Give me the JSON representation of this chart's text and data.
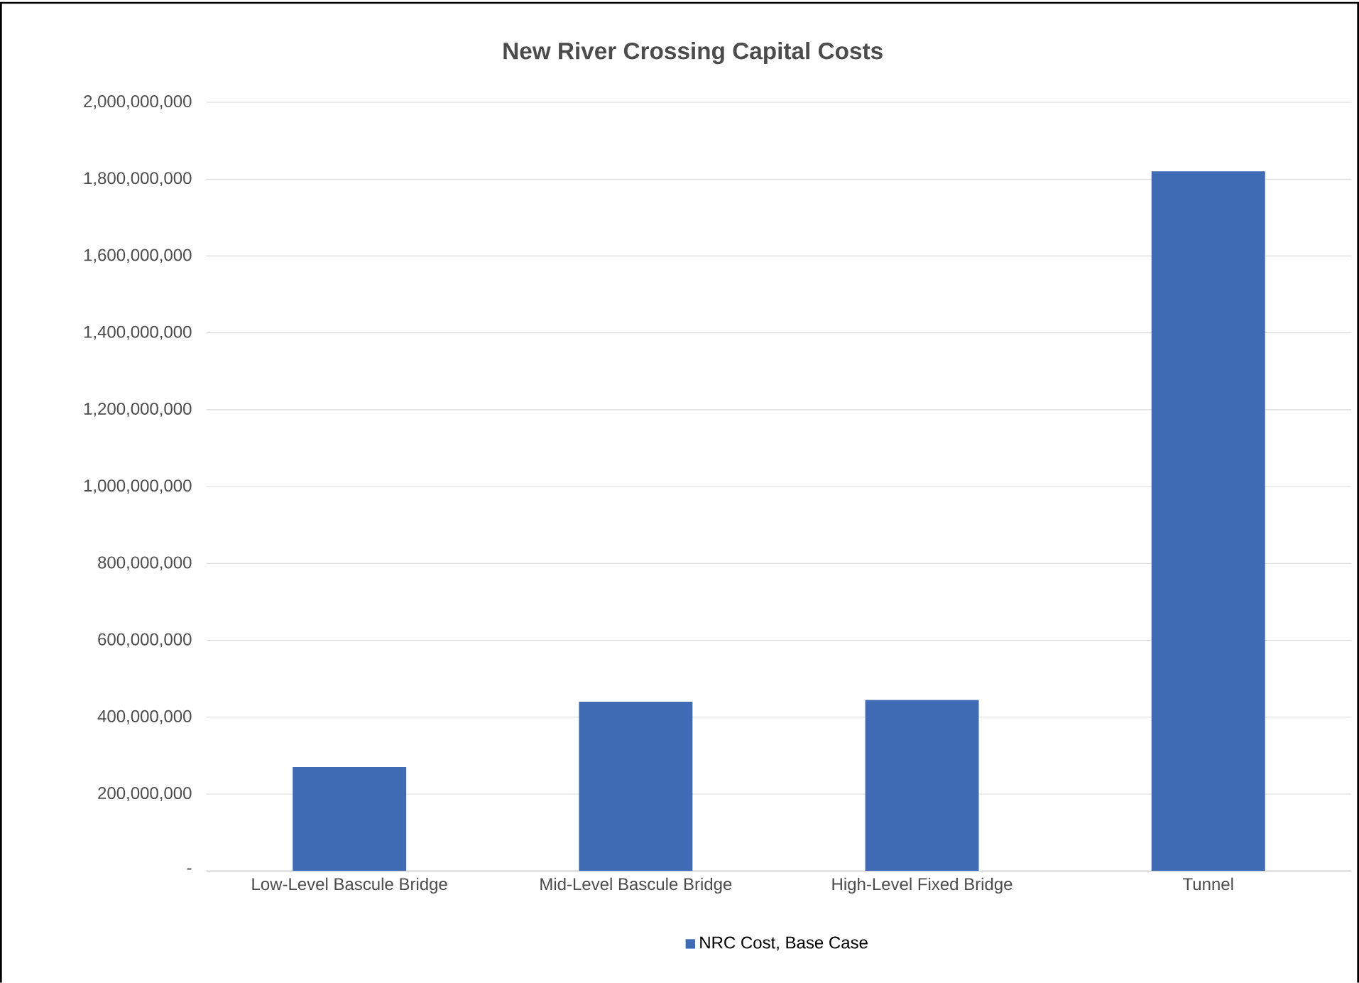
{
  "chart_data": {
    "type": "bar",
    "title": "New River Crossing Capital Costs",
    "categories": [
      "Low-Level Bascule Bridge",
      "Mid-Level Bascule Bridge",
      "High-Level Fixed Bridge",
      "Tunnel"
    ],
    "series": [
      {
        "name": "NRC Cost, Base Case",
        "color": "#3e6bb4",
        "values": [
          270000000,
          440000000,
          445000000,
          1820000000
        ]
      }
    ],
    "ylim": [
      0,
      2000000000
    ],
    "yticks": [
      {
        "value": 0,
        "label": "-"
      },
      {
        "value": 200000000,
        "label": "200,000,000"
      },
      {
        "value": 400000000,
        "label": "400,000,000"
      },
      {
        "value": 600000000,
        "label": "600,000,000"
      },
      {
        "value": 800000000,
        "label": "800,000,000"
      },
      {
        "value": 1000000000,
        "label": "1,000,000,000"
      },
      {
        "value": 1200000000,
        "label": "1,200,000,000"
      },
      {
        "value": 1400000000,
        "label": "1,400,000,000"
      },
      {
        "value": 1600000000,
        "label": "1,600,000,000"
      },
      {
        "value": 1800000000,
        "label": "1,800,000,000"
      },
      {
        "value": 2000000000,
        "label": "2,000,000,000"
      }
    ],
    "grid": "y",
    "legend": "bottom"
  }
}
